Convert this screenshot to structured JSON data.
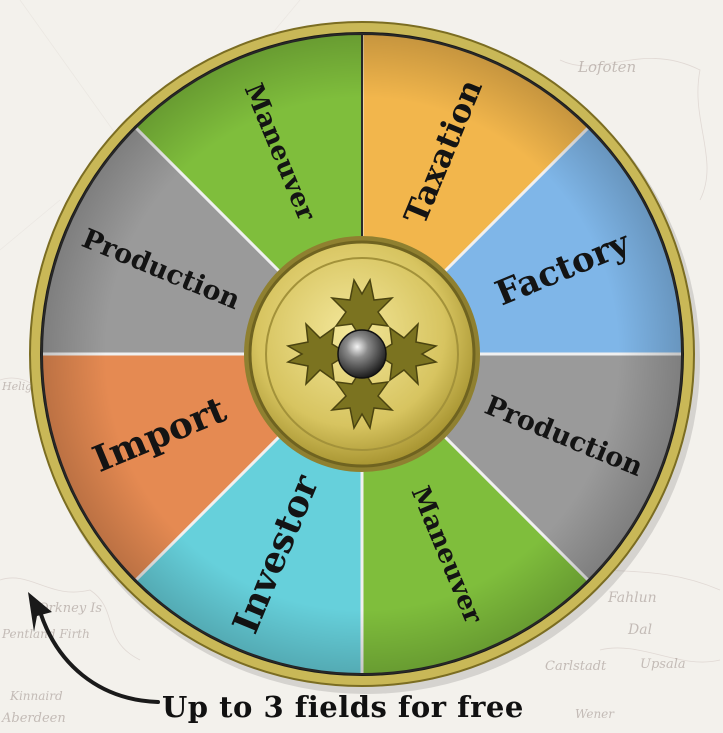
{
  "rondel": {
    "fields": [
      {
        "label": "Taxation",
        "color": "#f2b64c"
      },
      {
        "label": "Factory",
        "color": "#7fb6e8"
      },
      {
        "label": "Production",
        "color": "#9a9a9a"
      },
      {
        "label": "Maneuver",
        "color": "#7fbe3c"
      },
      {
        "label": "Investor",
        "color": "#66d0db",
        "label_color": "#c41d1d"
      },
      {
        "label": "Import",
        "color": "#e58a52"
      },
      {
        "label": "Production",
        "color": "#9a9a9a"
      },
      {
        "label": "Maneuver",
        "color": "#7fbe3c"
      }
    ],
    "hub": {
      "emblem": "leaf-cross-emblem",
      "color": "#d9c860"
    }
  },
  "caption": "Up to 3 fields for free",
  "map_labels": [
    "Lofoten",
    "Orkney Is",
    "Pentland Firth",
    "Kinnaird",
    "Aberdeen",
    "Fahlun",
    "Dal",
    "Carlstadt",
    "Upsala",
    "Wener",
    "Heligoland"
  ],
  "colors": {
    "rim": "#c9b857",
    "divider": "#f0f0f0",
    "arrow": "#1a1a1a"
  }
}
